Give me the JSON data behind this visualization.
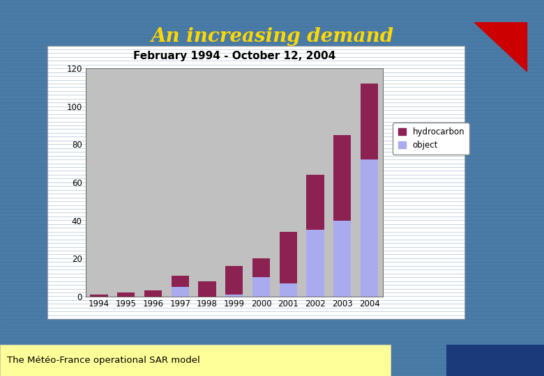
{
  "title": "February 1994 - October 12, 2004",
  "years": [
    "1994",
    "1995",
    "1996",
    "1997",
    "1998",
    "1999",
    "2000",
    "2001",
    "2002",
    "2003",
    "2004"
  ],
  "hydrocarbon": [
    1,
    2,
    3,
    6,
    8,
    15,
    10,
    27,
    29,
    45,
    40
  ],
  "object": [
    0,
    0,
    0,
    5,
    0,
    1,
    10,
    7,
    35,
    40,
    72
  ],
  "hydrocarbon_color": "#8B2252",
  "object_color": "#AAAAEE",
  "plot_bg_color": "#C0C0C0",
  "white_box_bg": "#FFFFFF",
  "fig_bg_color": "#4A7BA7",
  "title_fontsize": 11,
  "ylim": [
    0,
    120
  ],
  "yticks": [
    0,
    20,
    40,
    60,
    80,
    100,
    120
  ],
  "header_title": "An increasing demand",
  "header_color": "#FFD700",
  "header_fontsize": 20,
  "footer_text": "The Météo-France operational SAR model",
  "footer_bg": "#FFFF99",
  "stripe_color": "#3A6A97",
  "triangle_color": "#CC0000"
}
